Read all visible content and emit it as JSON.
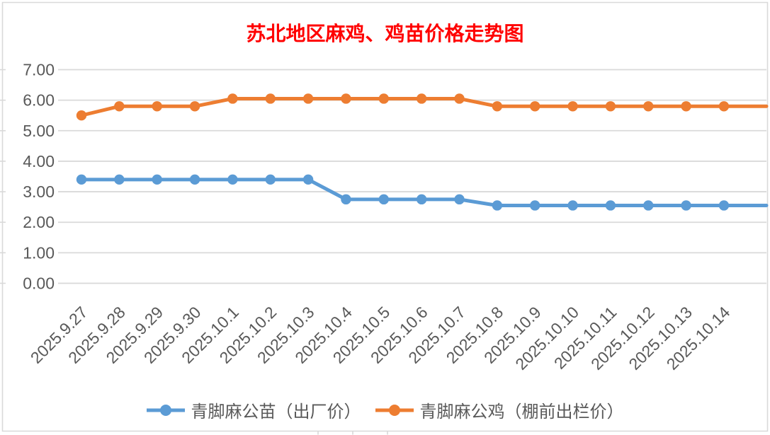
{
  "chart_data": {
    "type": "line",
    "title": "苏北地区麻鸡、鸡苗价格走势图",
    "title_color": "#FF0000",
    "categories": [
      "2025.9.27",
      "2025.9.28",
      "2025.9.29",
      "2025.9.30",
      "2025.10.1",
      "2025.10.2",
      "2025.10.3",
      "2025.10.4",
      "2025.10.5",
      "2025.10.6",
      "2025.10.7",
      "2025.10.8",
      "2025.10.9",
      "2025.10.10",
      "2025.10.11",
      "2025.10.12",
      "2025.10.13",
      "2025.10.14"
    ],
    "series": [
      {
        "name": "青脚麻公苗（出厂价）",
        "color": "#5B9BD5",
        "values": [
          3.4,
          3.4,
          3.4,
          3.4,
          3.4,
          3.4,
          3.4,
          2.75,
          2.75,
          2.75,
          2.75,
          2.55,
          2.55,
          2.55,
          2.55,
          2.55,
          2.55,
          2.55
        ]
      },
      {
        "name": "青脚麻公鸡（棚前出栏价）",
        "color": "#ED7D31",
        "values": [
          5.5,
          5.8,
          5.8,
          5.8,
          6.05,
          6.05,
          6.05,
          6.05,
          6.05,
          6.05,
          6.05,
          5.8,
          5.8,
          5.8,
          5.8,
          5.8,
          5.8,
          5.8
        ]
      }
    ],
    "ylim": [
      0,
      7
    ],
    "y_tick_step": 1,
    "y_tick_labels": [
      "0.00",
      "1.00",
      "2.00",
      "3.00",
      "4.00",
      "5.00",
      "6.00",
      "7.00"
    ],
    "xlabel": "",
    "ylabel": "",
    "grid": "horizontal",
    "legend_position": "bottom",
    "axis_text_color": "#595959",
    "gridline_color": "#D9D9D9",
    "border_color": "#D9D9D9"
  }
}
